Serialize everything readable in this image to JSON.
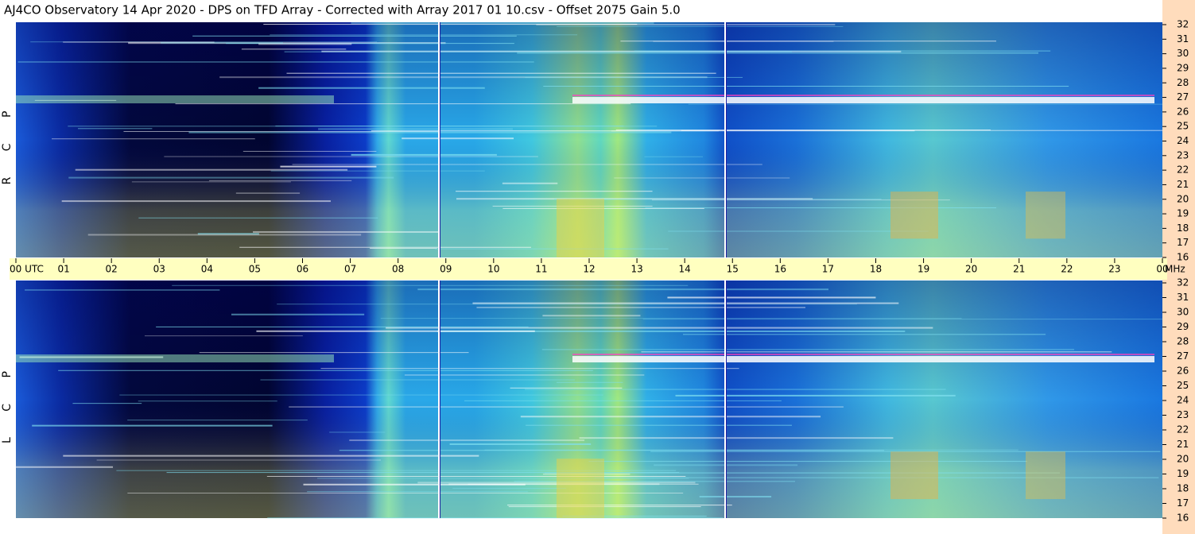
{
  "header": {
    "title": "AJ4CO Observatory  14 Apr 2020  -  DPS on TFD Array  -  Corrected with Array 2017 01 10.csv  -  Offset 2075  Gain 5.0"
  },
  "panels": [
    {
      "label": "R C P"
    },
    {
      "label": "L C P"
    }
  ],
  "time_axis": {
    "labels": [
      "00 UTC",
      "01",
      "02",
      "03",
      "04",
      "05",
      "06",
      "07",
      "08",
      "09",
      "10",
      "11",
      "12",
      "13",
      "14",
      "15",
      "16",
      "17",
      "18",
      "19",
      "20",
      "21",
      "22",
      "23",
      "00"
    ],
    "unit": "MHz"
  },
  "frequency_axis": {
    "labels": [
      "32",
      "31",
      "30",
      "29",
      "28",
      "27",
      "26",
      "25",
      "24",
      "23",
      "22",
      "21",
      "20",
      "19",
      "18",
      "17",
      "16"
    ]
  }
}
